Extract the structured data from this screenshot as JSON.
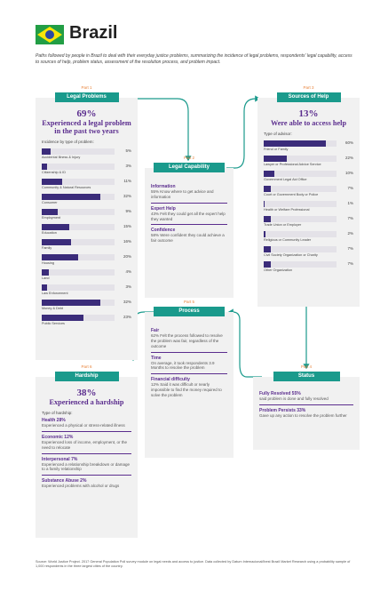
{
  "header": {
    "title": "Brazil",
    "subtitle": "Paths followed by people in Brazil to deal with their everyday justice problems, summarizing the incidence of legal problems, respondents' legal capability, access to sources of help, problem status, assessment of the resolution process, and problem impact."
  },
  "legal_problems": {
    "part": "Part 1",
    "heading": "Legal Problems",
    "stat": "69%",
    "stat_text": "Experienced a legal problem in the past two years",
    "list_title": "Incidence by type of problem:",
    "items": [
      {
        "label": "Accidental Illness & Injury",
        "value": 5,
        "value_label": "5%"
      },
      {
        "label": "Citizenship & ID",
        "value": 3,
        "value_label": "3%"
      },
      {
        "label": "Community & Natural Resources",
        "value": 11,
        "value_label": "11%"
      },
      {
        "label": "Consumer",
        "value": 32,
        "value_label": "32%"
      },
      {
        "label": "Employment",
        "value": 9,
        "value_label": "9%"
      },
      {
        "label": "Education",
        "value": 15,
        "value_label": "15%"
      },
      {
        "label": "Family",
        "value": 16,
        "value_label": "16%"
      },
      {
        "label": "Housing",
        "value": 20,
        "value_label": "20%"
      },
      {
        "label": "Land",
        "value": 4,
        "value_label": "4%"
      },
      {
        "label": "Law Enforcement",
        "value": 3,
        "value_label": "3%"
      },
      {
        "label": "Money & Debt",
        "value": 32,
        "value_label": "32%"
      },
      {
        "label": "Public Services",
        "value": 23,
        "value_label": "23%"
      }
    ]
  },
  "legal_capability": {
    "part": "Part 2",
    "heading": "Legal Capability",
    "items": [
      {
        "title": "Information",
        "text": "55% Know where to get advice and information"
      },
      {
        "title": "Expert Help",
        "text": "43% Felt they could get all the expert help they wanted"
      },
      {
        "title": "Confidence",
        "text": "58% Were confident they could achieve a fair outcome"
      }
    ]
  },
  "sources_of_help": {
    "part": "Part 3",
    "heading": "Sources of Help",
    "stat": "13%",
    "stat_text": "Were able to access help",
    "list_title": "Type of advisor:",
    "items": [
      {
        "label": "Friend or Family",
        "value": 60,
        "value_label": "60%"
      },
      {
        "label": "Lawyer or Professional Advice Service",
        "value": 22,
        "value_label": "22%"
      },
      {
        "label": "Government Legal Aid Office",
        "value": 10,
        "value_label": "10%"
      },
      {
        "label": "Court or Government Body or Police",
        "value": 7,
        "value_label": "7%"
      },
      {
        "label": "Health or Welfare Professional",
        "value": 1,
        "value_label": "1%"
      },
      {
        "label": "Trade Union or Employer",
        "value": 7,
        "value_label": "7%"
      },
      {
        "label": "Religious or Community Leader",
        "value": 2,
        "value_label": "2%"
      },
      {
        "label": "Civil Society Organization or Charity",
        "value": 7,
        "value_label": "7%"
      },
      {
        "label": "Other Organization",
        "value": 7,
        "value_label": "7%"
      }
    ]
  },
  "status": {
    "part": "Part 4",
    "heading": "Status",
    "items": [
      {
        "title": "Fully Resolved 55%",
        "text": "said problem is done and fully resolved"
      },
      {
        "title": "Problem Persists 33%",
        "text": "Gave up any action to resolve the problem further"
      }
    ]
  },
  "process": {
    "part": "Part 5",
    "heading": "Process",
    "items": [
      {
        "title": "Fair",
        "text": "62% Felt the process followed to resolve the problem was fair, regardless of the outcome"
      },
      {
        "title": "Time",
        "text": "On average, it took respondents 3.9 Months to resolve the problem"
      },
      {
        "title": "Financial difficulty",
        "text": "12% Said it was difficult or nearly impossible to find the money required to solve the problem"
      }
    ]
  },
  "hardship": {
    "part": "Part 6",
    "heading": "Hardship",
    "stat": "38%",
    "stat_text": "Experienced a hardship",
    "list_title": "Type of hardship:",
    "items": [
      {
        "title": "Health 28%",
        "text": "Experienced a physical or stress-related illness"
      },
      {
        "title": "Economic 12%",
        "text": "Experienced loss of income, employment, or the need to relocate"
      },
      {
        "title": "Interpersonal 7%",
        "text": "Experienced a relationship breakdown or damage to a family relationship"
      },
      {
        "title": "Substance Abuse 2%",
        "text": "Experienced problems with alcohol or drugs"
      }
    ]
  },
  "footer": {
    "source": "Source: World Justice Project. 2017 General Population Poll survey module on legal needs and access to justice. Data collected by Datum Internacional/Ibest Brazil Market Research using a probability sample of 1,000 respondents in the three largest cities of the country."
  }
}
